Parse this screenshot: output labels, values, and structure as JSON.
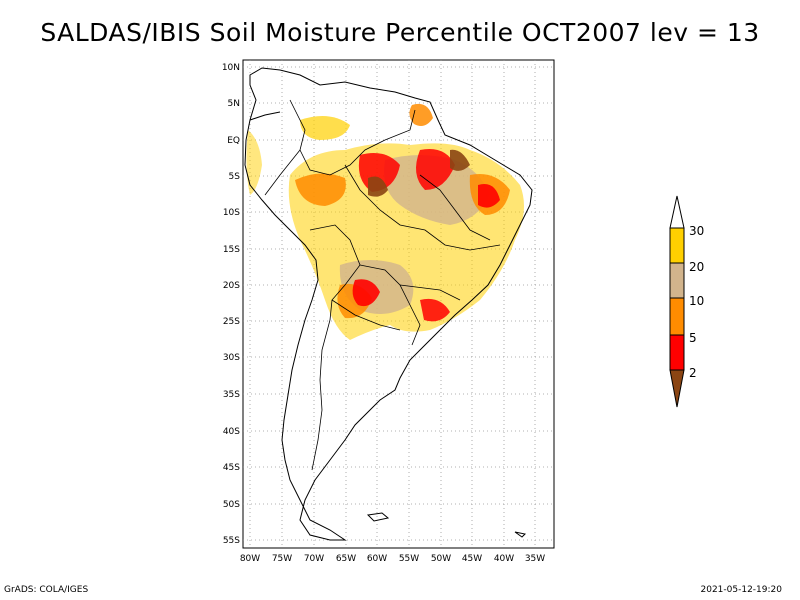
{
  "title": "SALDAS/IBIS Soil Moisture Percentile OCT2007 lev = 13",
  "footer": {
    "left": "GrADS: COLA/IGES",
    "right": "2021-05-12-19:20"
  },
  "lat_ticks": [
    "10N",
    "5N",
    "EQ",
    "5S",
    "10S",
    "15S",
    "20S",
    "25S",
    "30S",
    "35S",
    "40S",
    "45S",
    "50S",
    "55S"
  ],
  "lon_ticks": [
    "80W",
    "75W",
    "70W",
    "65W",
    "60W",
    "55W",
    "50W",
    "45W",
    "40W",
    "35W"
  ],
  "colorbar": {
    "labels": [
      "30",
      "20",
      "10",
      "5",
      "2"
    ],
    "colors": [
      "#ffd000",
      "#d2b48c",
      "#ff8c00",
      "#ff0000",
      "#8b4513"
    ],
    "top_color": "#ffffff"
  },
  "legend_colors": {
    "brown": "#8b4513",
    "red": "#ff0000",
    "orange": "#ff8c00",
    "tan": "#d2b48c",
    "yellow": "#ffd000"
  }
}
